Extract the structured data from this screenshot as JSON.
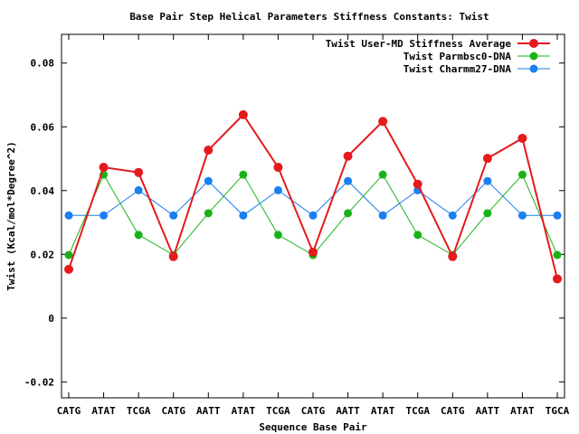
{
  "chart_data": {
    "type": "line",
    "title": "Base Pair Step Helical Parameters Stiffness Constants: Twist",
    "xlabel": "Sequence Base Pair",
    "ylabel": "Twist (Kcal/mol*Degree^2)",
    "categories": [
      "CATG",
      "ATAT",
      "TCGA",
      "CATG",
      "AATT",
      "ATAT",
      "TCGA",
      "CATG",
      "AATT",
      "ATAT",
      "TCGA",
      "CATG",
      "AATT",
      "ATAT",
      "TGCA"
    ],
    "ylim": [
      -0.025,
      0.089
    ],
    "yticks": [
      -0.02,
      0,
      0.02,
      0.04,
      0.06,
      0.08
    ],
    "ytick_labels": [
      "-0.02",
      "0",
      "0.02",
      "0.04",
      "0.06",
      "0.08"
    ],
    "grid": false,
    "legend_position": "top-right",
    "series": [
      {
        "name": "Twist User-MD Stiffness Average",
        "color": "#e41a1c",
        "values": [
          0.0153,
          0.0473,
          0.0457,
          0.0193,
          0.0527,
          0.0638,
          0.0473,
          0.0207,
          0.0508,
          0.0617,
          0.042,
          0.0193,
          0.0501,
          0.0564,
          0.0123
        ]
      },
      {
        "name": "Twist Parmbsc0-DNA",
        "color": "#19b319",
        "values": [
          0.0198,
          0.045,
          0.0261,
          0.0198,
          0.0329,
          0.045,
          0.0261,
          0.0198,
          0.0329,
          0.045,
          0.0261,
          0.0198,
          0.0329,
          0.045,
          0.0198
        ]
      },
      {
        "name": "Twist Charmm27-DNA",
        "color": "#1a7ff0",
        "values": [
          0.0322,
          0.0322,
          0.0401,
          0.0322,
          0.043,
          0.0322,
          0.0401,
          0.0322,
          0.043,
          0.0322,
          0.0401,
          0.0322,
          0.043,
          0.0322,
          0.0322
        ]
      }
    ]
  }
}
